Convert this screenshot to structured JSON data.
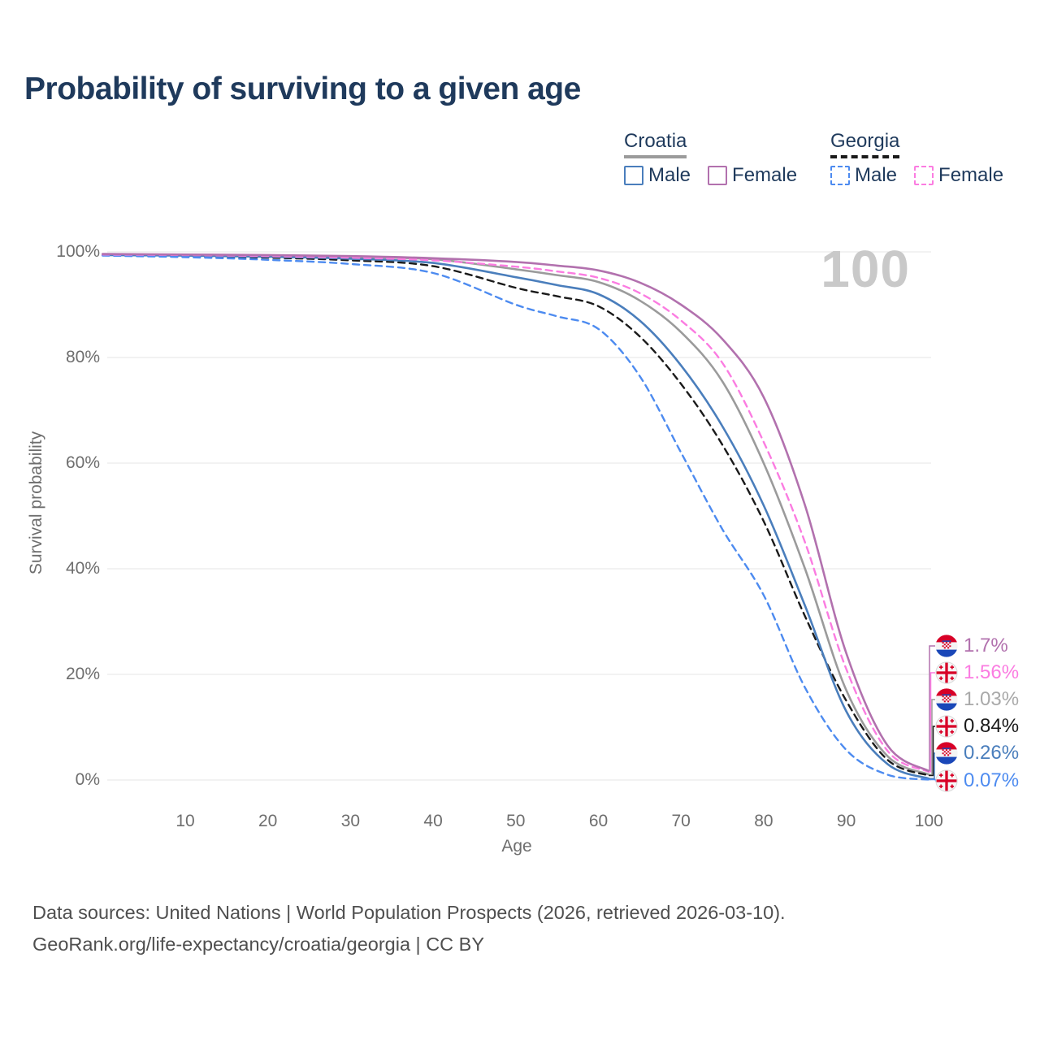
{
  "title": "Probability of surviving to a given age",
  "watermark": "100",
  "legend": {
    "groups": [
      {
        "label": "Croatia",
        "line_style": "solid",
        "underline_color": "#9b9b9b",
        "items": [
          {
            "label": "Male",
            "color": "#4a7ebc",
            "line_style": "solid"
          },
          {
            "label": "Female",
            "color": "#b271ae",
            "line_style": "solid"
          }
        ]
      },
      {
        "label": "Georgia",
        "line_style": "dashed",
        "underline_color": "#1a1a1a",
        "items": [
          {
            "label": "Male",
            "color": "#4d8bf0",
            "line_style": "dashed"
          },
          {
            "label": "Female",
            "color": "#fb7ce1",
            "line_style": "dashed"
          }
        ]
      }
    ]
  },
  "axes": {
    "y_title": "Survival probability",
    "x_title": "Age",
    "y_tick_labels": [
      "100%",
      "80%",
      "60%",
      "40%",
      "20%",
      "0%"
    ],
    "y_tick_values": [
      100,
      80,
      60,
      40,
      20,
      0
    ],
    "x_tick_labels": [
      "10",
      "20",
      "30",
      "40",
      "50",
      "60",
      "70",
      "80",
      "90",
      "100"
    ],
    "x_tick_values": [
      10,
      20,
      30,
      40,
      50,
      60,
      70,
      80,
      90,
      100
    ]
  },
  "chart_data": {
    "type": "line",
    "title": "Probability of surviving to a given age",
    "xlabel": "Age",
    "ylabel": "Survival probability",
    "xlim": [
      0,
      100
    ],
    "ylim": [
      0,
      100
    ],
    "grid": "horizontal",
    "legend_position": "top-right",
    "ages": [
      0,
      10,
      20,
      30,
      40,
      50,
      55,
      60,
      65,
      70,
      75,
      80,
      85,
      90,
      95,
      100
    ],
    "series": [
      {
        "name": "Croatia",
        "country": "croatia",
        "sex": "all",
        "color": "#9b9b9b",
        "dash": "solid",
        "values": [
          99.5,
          99.4,
          99.3,
          99.0,
          98.6,
          96.7,
          95.6,
          94.3,
          90.8,
          84.8,
          75.5,
          60.0,
          40.0,
          17.0,
          4.5,
          1.03
        ],
        "end_label": "1.03%"
      },
      {
        "name": "Georgia",
        "country": "georgia",
        "sex": "all",
        "color": "#1a1a1a",
        "dash": "dashed",
        "values": [
          99.4,
          99.2,
          98.9,
          98.4,
          97.3,
          93.2,
          91.6,
          89.7,
          84.0,
          75.0,
          63.5,
          49.0,
          31.0,
          15.0,
          3.8,
          0.84
        ],
        "end_label": "0.84%"
      },
      {
        "name": "Croatia Male",
        "country": "croatia",
        "sex": "male",
        "color": "#4a7ebc",
        "dash": "solid",
        "values": [
          99.4,
          99.3,
          99.1,
          98.7,
          97.9,
          95.2,
          93.7,
          92.0,
          87.0,
          78.5,
          67.0,
          52.0,
          33.0,
          13.0,
          3.0,
          0.26
        ],
        "end_label": "0.26%"
      },
      {
        "name": "Georgia Male",
        "country": "georgia",
        "sex": "male",
        "color": "#4d8bf0",
        "dash": "dashed",
        "values": [
          99.3,
          99.0,
          98.5,
          97.7,
          96.0,
          90.0,
          87.8,
          85.4,
          76.5,
          62.0,
          47.5,
          35.0,
          17.5,
          5.7,
          1.0,
          0.07
        ],
        "end_label": "0.07%"
      },
      {
        "name": "Georgia Female",
        "country": "georgia",
        "sex": "female",
        "color": "#fb7ce1",
        "dash": "dashed",
        "values": [
          99.5,
          99.4,
          99.2,
          98.9,
          98.4,
          97.2,
          96.3,
          95.1,
          92.2,
          87.0,
          79.0,
          64.0,
          45.0,
          21.0,
          5.5,
          1.56
        ],
        "end_label": "1.56%"
      },
      {
        "name": "Croatia Female",
        "country": "croatia",
        "sex": "female",
        "color": "#b271ae",
        "dash": "solid",
        "values": [
          99.6,
          99.5,
          99.4,
          99.2,
          98.8,
          98.1,
          97.4,
          96.5,
          94.2,
          90.0,
          83.5,
          72.5,
          52.0,
          24.0,
          6.5,
          1.7
        ],
        "end_label": "1.7%"
      }
    ],
    "end_labels_top_to_bottom": [
      {
        "series": "Croatia Female",
        "flag": "croatia",
        "text": "1.7%",
        "color": "#b271ae"
      },
      {
        "series": "Georgia Female",
        "flag": "georgia",
        "text": "1.56%",
        "color": "#fb7ce1"
      },
      {
        "series": "Croatia",
        "flag": "croatia",
        "text": "1.03%",
        "color": "#a9a9a9"
      },
      {
        "series": "Georgia",
        "flag": "georgia",
        "text": "0.84%",
        "color": "#1a1a1a"
      },
      {
        "series": "Croatia Male",
        "flag": "croatia",
        "text": "0.26%",
        "color": "#4a7ebc"
      },
      {
        "series": "Georgia Male",
        "flag": "georgia",
        "text": "0.07%",
        "color": "#4d8bf0"
      }
    ]
  },
  "footer": {
    "line1": "Data sources: United Nations | World Population Prospects (2026, retrieved 2026-03-10).",
    "line2": "GeoRank.org/life-expectancy/croatia/georgia | CC BY"
  }
}
